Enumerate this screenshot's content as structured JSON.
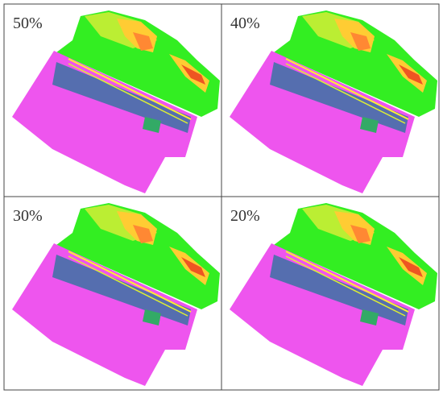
{
  "panels": [
    {
      "label": "50%"
    },
    {
      "label": "40%"
    },
    {
      "label": "30%"
    },
    {
      "label": "20%"
    }
  ]
}
